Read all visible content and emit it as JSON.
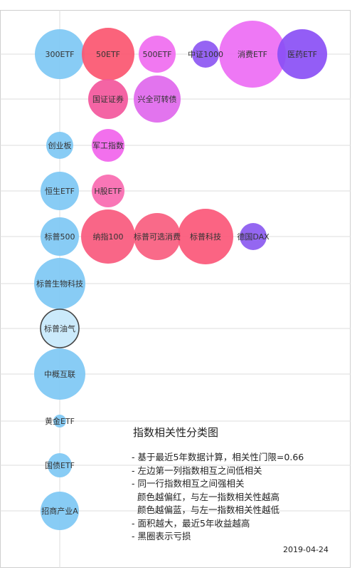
{
  "chart_data": {
    "type": "bubble",
    "rows": [
      {
        "items": [
          {
            "name": "300ETF",
            "color": "#7ec8f4",
            "r": 35
          },
          {
            "name": "50ETF",
            "color": "#fb5670",
            "r": 37
          },
          {
            "name": "500ETF",
            "color": "#f06cf0",
            "r": 26
          },
          {
            "name": "中证1000",
            "color": "#8d57f2",
            "r": 19
          },
          {
            "name": "消费ETF",
            "color": "#ed6df4",
            "r": 47
          },
          {
            "name": "医药ETF",
            "color": "#8a4ff5",
            "r": 35
          }
        ]
      },
      {
        "items": [
          {
            "name": "国证证券",
            "color": "#f3579c",
            "r": 28
          },
          {
            "name": "兴全可转债",
            "color": "#df68ed",
            "r": 33
          }
        ]
      },
      {
        "items": [
          {
            "name": "创业板",
            "color": "#7ec8f4",
            "r": 19
          },
          {
            "name": "军工指数",
            "color": "#f164eb",
            "r": 23
          }
        ]
      },
      {
        "items": [
          {
            "name": "恒生ETF",
            "color": "#7ec8f4",
            "r": 27
          },
          {
            "name": "H股ETF",
            "color": "#f96ab0",
            "r": 23
          }
        ]
      },
      {
        "items": [
          {
            "name": "标普500",
            "color": "#7ec8f4",
            "r": 27
          },
          {
            "name": "纳指100",
            "color": "#f9597d",
            "r": 38
          },
          {
            "name": "标普可选消费",
            "color": "#f95d7f",
            "r": 33
          },
          {
            "name": "标普科技",
            "color": "#fb5778",
            "r": 39
          },
          {
            "name": "德国DAX",
            "color": "#8b5af0",
            "r": 19
          }
        ]
      },
      {
        "items": [
          {
            "name": "标普生物科技",
            "color": "#7ec8f4",
            "r": 36
          }
        ]
      },
      {
        "items": [
          {
            "name": "标普油气",
            "color": "#c7e8fb",
            "r": 27,
            "loss": true
          }
        ]
      },
      {
        "items": [
          {
            "name": "中概互联",
            "color": "#7ec8f4",
            "r": 36
          }
        ]
      },
      {
        "items": [
          {
            "name": "黄金ETF",
            "color": "#7ec8f4",
            "r": 9
          }
        ]
      },
      {
        "items": [
          {
            "name": "国债ETF",
            "color": "#7ec8f4",
            "r": 17
          }
        ]
      },
      {
        "items": [
          {
            "name": "招商产业A",
            "color": "#7ec8f4",
            "r": 27
          }
        ]
      }
    ],
    "grid": true
  },
  "legend": {
    "title": "指数相关性分类图",
    "lines": [
      "- 基于最近5年数据计算，相关性门限=0.66",
      "- 左边第一列指数相互之间低相关",
      "- 同一行指数相互之间强相关",
      "  颜色越偏红，与左一指数相关性越高",
      "  颜色越偏蓝，与左一指数相关性越低",
      "- 面积越大，最近5年收益越高",
      "- 黑圈表示亏损"
    ]
  },
  "date": "2019-04-24"
}
